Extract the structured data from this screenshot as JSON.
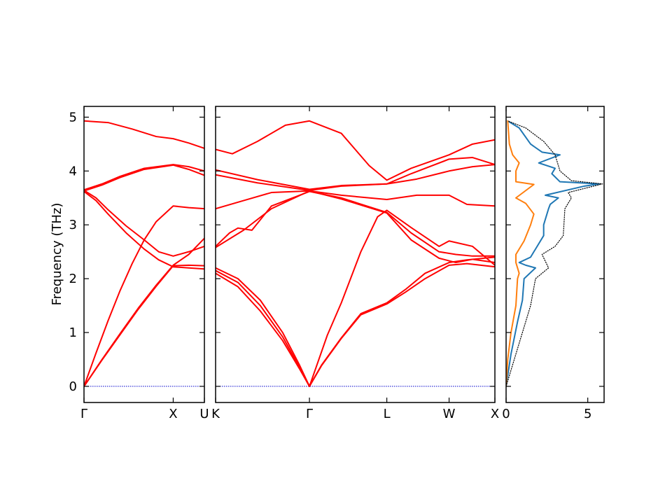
{
  "chart_data": [
    {
      "type": "line",
      "ylabel": "Frequency (THz)",
      "ylim": [
        -0.3,
        5.2
      ],
      "yticks": [
        0,
        1,
        2,
        3,
        4,
        5
      ],
      "x_range": [
        0,
        1
      ],
      "xticks": [
        {
          "x": 0,
          "label": "Γ"
        },
        {
          "x": 0.741,
          "label": "X"
        },
        {
          "x": 1.0,
          "label": "U"
        }
      ],
      "reference_line": {
        "y": 0,
        "style": "dotted",
        "color": "#0000cc"
      },
      "color": "#ff0000",
      "series": [
        {
          "points": [
            [
              0,
              4.93
            ],
            [
              0.2,
              4.9
            ],
            [
              0.4,
              4.78
            ],
            [
              0.6,
              4.64
            ],
            [
              0.741,
              4.6
            ],
            [
              0.87,
              4.52
            ],
            [
              1.0,
              4.42
            ]
          ]
        },
        {
          "points": [
            [
              0,
              3.65
            ],
            [
              0.15,
              3.76
            ],
            [
              0.3,
              3.9
            ],
            [
              0.5,
              4.05
            ],
            [
              0.741,
              4.12
            ],
            [
              0.87,
              4.08
            ],
            [
              1.0,
              4.0
            ]
          ]
        },
        {
          "points": [
            [
              0,
              3.63
            ],
            [
              0.15,
              3.74
            ],
            [
              0.3,
              3.88
            ],
            [
              0.5,
              4.03
            ],
            [
              0.741,
              4.11
            ],
            [
              0.87,
              4.03
            ],
            [
              1.0,
              3.92
            ]
          ]
        },
        {
          "points": [
            [
              0,
              3.64
            ],
            [
              0.1,
              3.5
            ],
            [
              0.2,
              3.28
            ],
            [
              0.35,
              2.98
            ],
            [
              0.5,
              2.72
            ],
            [
              0.62,
              2.5
            ],
            [
              0.741,
              2.42
            ],
            [
              0.87,
              2.5
            ],
            [
              1.0,
              2.6
            ]
          ]
        },
        {
          "points": [
            [
              0,
              3.62
            ],
            [
              0.1,
              3.45
            ],
            [
              0.2,
              3.2
            ],
            [
              0.35,
              2.85
            ],
            [
              0.5,
              2.55
            ],
            [
              0.62,
              2.35
            ],
            [
              0.741,
              2.22
            ],
            [
              0.87,
              2.2
            ],
            [
              1.0,
              2.18
            ]
          ]
        },
        {
          "points": [
            [
              0,
              0.0
            ],
            [
              0.1,
              0.62
            ],
            [
              0.2,
              1.22
            ],
            [
              0.3,
              1.78
            ],
            [
              0.4,
              2.28
            ],
            [
              0.5,
              2.72
            ],
            [
              0.6,
              3.06
            ],
            [
              0.741,
              3.35
            ],
            [
              0.87,
              3.32
            ],
            [
              1.0,
              3.3
            ]
          ]
        },
        {
          "points": [
            [
              0,
              0.0
            ],
            [
              0.15,
              0.5
            ],
            [
              0.3,
              0.98
            ],
            [
              0.45,
              1.45
            ],
            [
              0.6,
              1.88
            ],
            [
              0.741,
              2.25
            ],
            [
              0.87,
              2.45
            ],
            [
              1.0,
              2.75
            ]
          ]
        },
        {
          "points": [
            [
              0,
              0.0
            ],
            [
              0.15,
              0.49
            ],
            [
              0.3,
              0.96
            ],
            [
              0.45,
              1.43
            ],
            [
              0.6,
              1.86
            ],
            [
              0.741,
              2.24
            ],
            [
              0.87,
              2.25
            ],
            [
              1.0,
              2.24
            ]
          ]
        }
      ]
    },
    {
      "type": "line",
      "ylim": [
        -0.3,
        5.2
      ],
      "yticks": [
        0,
        1,
        2,
        3,
        4,
        5
      ],
      "x_range": [
        0,
        1
      ],
      "xticks": [
        {
          "x": 0,
          "label": "K"
        },
        {
          "x": 0.336,
          "label": "Γ"
        },
        {
          "x": 0.613,
          "label": "L"
        },
        {
          "x": 0.836,
          "label": "W"
        },
        {
          "x": 1.0,
          "label": "X"
        }
      ],
      "reference_line": {
        "y": 0,
        "style": "dotted",
        "color": "#0000cc"
      },
      "color": "#ff0000",
      "series": [
        {
          "points": [
            [
              0,
              4.4
            ],
            [
              0.06,
              4.32
            ],
            [
              0.15,
              4.55
            ],
            [
              0.25,
              4.85
            ],
            [
              0.336,
              4.93
            ],
            [
              0.45,
              4.7
            ],
            [
              0.55,
              4.1
            ],
            [
              0.613,
              3.83
            ],
            [
              0.7,
              4.05
            ],
            [
              0.836,
              4.3
            ],
            [
              0.92,
              4.5
            ],
            [
              1.0,
              4.58
            ]
          ]
        },
        {
          "points": [
            [
              0,
              4.02
            ],
            [
              0.15,
              3.84
            ],
            [
              0.336,
              3.66
            ],
            [
              0.45,
              3.73
            ],
            [
              0.613,
              3.76
            ],
            [
              0.7,
              3.95
            ],
            [
              0.836,
              4.22
            ],
            [
              0.92,
              4.25
            ],
            [
              1.0,
              4.12
            ]
          ]
        },
        {
          "points": [
            [
              0,
              3.93
            ],
            [
              0.15,
              3.78
            ],
            [
              0.336,
              3.64
            ],
            [
              0.45,
              3.72
            ],
            [
              0.613,
              3.76
            ],
            [
              0.72,
              3.85
            ],
            [
              0.836,
              4.0
            ],
            [
              0.92,
              4.08
            ],
            [
              1.0,
              4.12
            ]
          ]
        },
        {
          "points": [
            [
              0,
              3.3
            ],
            [
              0.1,
              3.45
            ],
            [
              0.2,
              3.6
            ],
            [
              0.336,
              3.63
            ],
            [
              0.45,
              3.55
            ],
            [
              0.613,
              3.47
            ],
            [
              0.72,
              3.55
            ],
            [
              0.836,
              3.55
            ],
            [
              0.9,
              3.38
            ],
            [
              1.0,
              3.35
            ]
          ]
        },
        {
          "points": [
            [
              0,
              2.6
            ],
            [
              0.05,
              2.85
            ],
            [
              0.08,
              2.94
            ],
            [
              0.13,
              2.9
            ],
            [
              0.2,
              3.35
            ],
            [
              0.336,
              3.62
            ],
            [
              0.45,
              3.5
            ],
            [
              0.613,
              3.23
            ],
            [
              0.7,
              2.85
            ],
            [
              0.8,
              2.5
            ],
            [
              0.86,
              2.45
            ],
            [
              0.92,
              2.42
            ],
            [
              1.0,
              2.42
            ]
          ]
        },
        {
          "points": [
            [
              0,
              2.58
            ],
            [
              0.1,
              2.9
            ],
            [
              0.2,
              3.3
            ],
            [
              0.336,
              3.63
            ],
            [
              0.45,
              3.48
            ],
            [
              0.613,
              3.22
            ],
            [
              0.7,
              2.72
            ],
            [
              0.8,
              2.38
            ],
            [
              0.86,
              2.3
            ],
            [
              0.92,
              2.36
            ],
            [
              1.0,
              2.3
            ]
          ]
        },
        {
          "points": [
            [
              0,
              2.2
            ],
            [
              0.08,
              2.0
            ],
            [
              0.16,
              1.6
            ],
            [
              0.24,
              1.0
            ],
            [
              0.3,
              0.4
            ],
            [
              0.336,
              0.0
            ],
            [
              0.38,
              0.4
            ],
            [
              0.45,
              0.9
            ],
            [
              0.52,
              1.35
            ],
            [
              0.613,
              1.55
            ],
            [
              0.68,
              1.8
            ],
            [
              0.75,
              2.1
            ],
            [
              0.836,
              2.3
            ],
            [
              0.9,
              2.35
            ],
            [
              1.0,
              2.4
            ]
          ]
        },
        {
          "points": [
            [
              0,
              2.15
            ],
            [
              0.08,
              1.93
            ],
            [
              0.16,
              1.5
            ],
            [
              0.24,
              0.92
            ],
            [
              0.3,
              0.36
            ],
            [
              0.336,
              0.0
            ],
            [
              0.38,
              0.39
            ],
            [
              0.45,
              0.89
            ],
            [
              0.52,
              1.33
            ],
            [
              0.613,
              1.53
            ],
            [
              0.68,
              1.75
            ],
            [
              0.75,
              2.0
            ],
            [
              0.836,
              2.25
            ],
            [
              0.9,
              2.28
            ],
            [
              1.0,
              2.22
            ]
          ]
        },
        {
          "points": [
            [
              0,
              2.1
            ],
            [
              0.08,
              1.85
            ],
            [
              0.16,
              1.4
            ],
            [
              0.24,
              0.85
            ],
            [
              0.3,
              0.33
            ],
            [
              0.336,
              0.0
            ],
            [
              0.4,
              0.95
            ],
            [
              0.45,
              1.55
            ],
            [
              0.52,
              2.5
            ],
            [
              0.58,
              3.15
            ],
            [
              0.613,
              3.27
            ],
            [
              0.7,
              2.95
            ],
            [
              0.8,
              2.6
            ],
            [
              0.836,
              2.7
            ],
            [
              0.92,
              2.6
            ],
            [
              1.0,
              2.25
            ]
          ]
        }
      ]
    },
    {
      "type": "line",
      "xlim": [
        0,
        6
      ],
      "xticks": [
        0,
        5
      ],
      "ylim": [
        -0.3,
        5.2
      ],
      "yticks": [
        0,
        1,
        2,
        3,
        4,
        5
      ],
      "series": [
        {
          "color": "#1f77b4",
          "style": "solid",
          "points": [
            [
              0,
              0
            ],
            [
              0.3,
              0.6
            ],
            [
              0.7,
              1.2
            ],
            [
              1.0,
              1.6
            ],
            [
              1.1,
              2.0
            ],
            [
              1.8,
              2.2
            ],
            [
              1.2,
              2.25
            ],
            [
              0.8,
              2.3
            ],
            [
              1.5,
              2.4
            ],
            [
              1.9,
              2.6
            ],
            [
              2.3,
              2.8
            ],
            [
              2.3,
              3.0
            ],
            [
              2.5,
              3.2
            ],
            [
              2.6,
              3.3
            ],
            [
              2.7,
              3.38
            ],
            [
              3.2,
              3.5
            ],
            [
              2.4,
              3.55
            ],
            [
              4.8,
              3.72
            ],
            [
              5.7,
              3.76
            ],
            [
              3.3,
              3.8
            ],
            [
              2.8,
              3.95
            ],
            [
              3.0,
              4.05
            ],
            [
              2.0,
              4.15
            ],
            [
              3.3,
              4.3
            ],
            [
              2.2,
              4.35
            ],
            [
              1.5,
              4.5
            ],
            [
              0.8,
              4.8
            ],
            [
              0.1,
              4.93
            ]
          ]
        },
        {
          "color": "#ff7f0e",
          "style": "solid",
          "points": [
            [
              0,
              0
            ],
            [
              0.1,
              0.5
            ],
            [
              0.3,
              1.0
            ],
            [
              0.6,
              1.5
            ],
            [
              0.7,
              2.0
            ],
            [
              0.8,
              2.1
            ],
            [
              0.6,
              2.3
            ],
            [
              0.6,
              2.45
            ],
            [
              1.1,
              2.7
            ],
            [
              1.5,
              3.0
            ],
            [
              1.7,
              3.2
            ],
            [
              1.2,
              3.4
            ],
            [
              0.6,
              3.5
            ],
            [
              1.7,
              3.75
            ],
            [
              0.6,
              3.8
            ],
            [
              0.6,
              4.0
            ],
            [
              0.8,
              4.15
            ],
            [
              0.4,
              4.3
            ],
            [
              0.2,
              4.5
            ],
            [
              0.1,
              4.93
            ]
          ]
        },
        {
          "color": "#000000",
          "style": "dotted",
          "points": [
            [
              0,
              0
            ],
            [
              0.5,
              0.5
            ],
            [
              1.0,
              1.0
            ],
            [
              1.5,
              1.5
            ],
            [
              1.8,
              2.0
            ],
            [
              2.6,
              2.2
            ],
            [
              2.2,
              2.45
            ],
            [
              3.0,
              2.6
            ],
            [
              3.5,
              2.8
            ],
            [
              3.6,
              3.3
            ],
            [
              4.0,
              3.5
            ],
            [
              3.8,
              3.6
            ],
            [
              5.9,
              3.76
            ],
            [
              4.0,
              3.82
            ],
            [
              3.3,
              4.0
            ],
            [
              3.0,
              4.3
            ],
            [
              2.3,
              4.55
            ],
            [
              1.2,
              4.8
            ],
            [
              0.1,
              4.93
            ]
          ]
        }
      ]
    }
  ]
}
